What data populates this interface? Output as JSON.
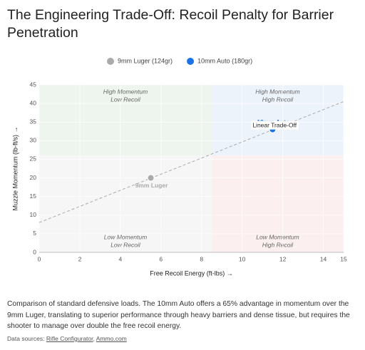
{
  "chart_data": {
    "type": "scatter",
    "title": "The Engineering Trade-Off: Recoil Penalty for Barrier Penetration",
    "x_label": "Free Recoil Energy (ft-lbs) →",
    "y_label": "Muzzle Momentum (lb-ft/s) →",
    "series": [
      {
        "name": "9mm Luger (124gr)",
        "point_label": "9mm Luger",
        "color": "#aaaaaa",
        "x": [
          5.5
        ],
        "values": [
          20
        ]
      },
      {
        "name": "10mm Auto (180gr)",
        "point_label": "10mm Auto",
        "color": "#1a73e8",
        "x": [
          11.5
        ],
        "values": [
          33
        ]
      }
    ],
    "trendline": {
      "label": "Linear Trade-Off",
      "x": [
        0,
        15
      ],
      "values": [
        8,
        40.5
      ]
    },
    "x_split": 8.5,
    "y_split": 26,
    "quadrants": [
      {
        "lines": [
          "High Momentum",
          "Low Recoil"
        ],
        "color": "#eef5ee"
      },
      {
        "lines": [
          "High Momentum",
          "High Recoil"
        ],
        "color": "#edf3fb"
      },
      {
        "lines": [
          "Low Momentum",
          "Low Recoil"
        ],
        "color": "#f6f6f6"
      },
      {
        "lines": [
          "Low Momentum",
          "High Recoil"
        ],
        "color": "#fbefef"
      }
    ],
    "xlim": [
      0,
      15
    ],
    "xticks": [
      0,
      2,
      4,
      6,
      8,
      10,
      12,
      14,
      15
    ],
    "ylim": [
      0,
      45
    ],
    "yticks": [
      0,
      5,
      10,
      15,
      20,
      25,
      30,
      35,
      40,
      45
    ],
    "grid": true
  },
  "caption": "Comparison of standard defensive loads. The 10mm Auto offers a 65% advantage in momentum over the 9mm Luger, translating to superior performance through heavy barriers and dense tissue, but requires the shooter to manage over double the free recoil energy.",
  "sources": {
    "label": "Data sources:",
    "links": [
      "Rifle Configurator",
      "Ammo.com"
    ],
    "separator": ","
  }
}
